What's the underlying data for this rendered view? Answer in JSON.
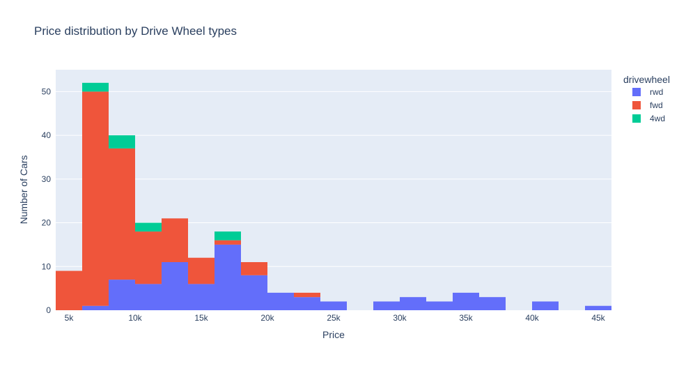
{
  "chart_data": {
    "type": "bar",
    "stacked": true,
    "title": "Price distribution by Drive Wheel types",
    "xlabel": "Price",
    "ylabel": "Number of Cars",
    "bin_width": 2000,
    "bin_start": 4000,
    "xlim": [
      4000,
      46000
    ],
    "ylim": [
      0,
      55
    ],
    "xticks": [
      5000,
      10000,
      15000,
      20000,
      25000,
      30000,
      35000,
      40000,
      45000
    ],
    "xtick_labels": [
      "5k",
      "10k",
      "15k",
      "20k",
      "25k",
      "30k",
      "35k",
      "40k",
      "45k"
    ],
    "yticks": [
      0,
      10,
      20,
      30,
      40,
      50
    ],
    "ytick_labels": [
      "0",
      "10",
      "20",
      "30",
      "40",
      "50"
    ],
    "grid": true,
    "legend": {
      "title": "drivewheel",
      "placement": "top-right"
    },
    "series": [
      {
        "name": "rwd",
        "color": "#636efa",
        "values": [
          0,
          1,
          7,
          6,
          11,
          6,
          15,
          8,
          4,
          3,
          2,
          0,
          2,
          3,
          2,
          4,
          3,
          0,
          2,
          0,
          1
        ]
      },
      {
        "name": "fwd",
        "color": "#ef553b",
        "values": [
          9,
          49,
          30,
          12,
          10,
          6,
          1,
          3,
          0,
          1,
          0,
          0,
          0,
          0,
          0,
          0,
          0,
          0,
          0,
          0,
          0
        ]
      },
      {
        "name": "4wd",
        "color": "#00cc96",
        "values": [
          0,
          2,
          3,
          2,
          0,
          0,
          2,
          0,
          0,
          0,
          0,
          0,
          0,
          0,
          0,
          0,
          0,
          0,
          0,
          0,
          0
        ]
      }
    ]
  }
}
